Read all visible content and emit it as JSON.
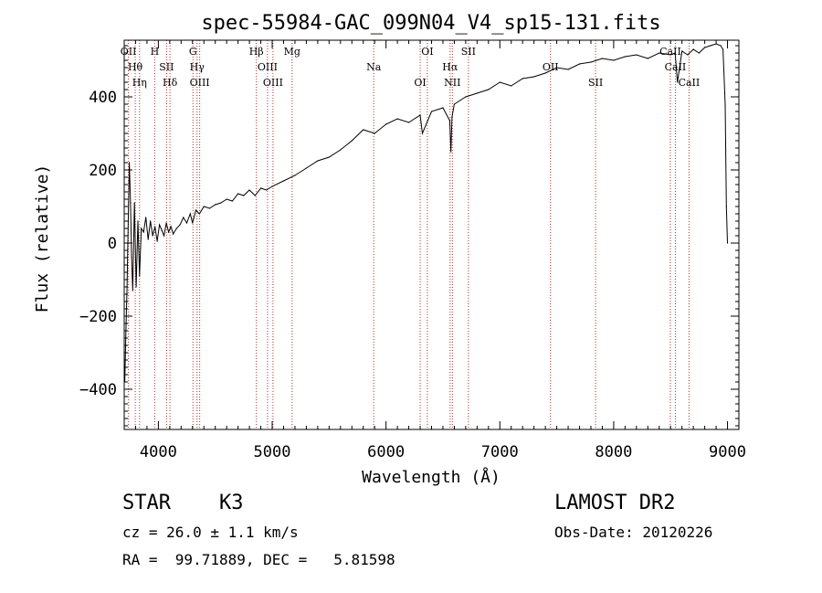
{
  "chart_data": {
    "type": "line",
    "title": "spec-55984-GAC_099N04_V4_sp15-131.fits",
    "xlabel": "Wavelength (Å)",
    "ylabel": "Flux (relative)",
    "xlim": [
      3700,
      9100
    ],
    "ylim": [
      -510,
      555
    ],
    "x_ticks": [
      4000,
      5000,
      6000,
      7000,
      8000,
      9000
    ],
    "x_tick_labels": [
      "4000",
      "5000",
      "6000",
      "7000",
      "8000",
      "9000"
    ],
    "y_ticks": [
      -400,
      -200,
      0,
      200,
      400
    ],
    "y_tick_labels": [
      "−400",
      "−200",
      "0",
      "200",
      "400"
    ],
    "grid": false,
    "series": [
      {
        "x": [
          3705,
          3715,
          3725,
          3735,
          3745,
          3755,
          3765,
          3775,
          3790,
          3805,
          3820,
          3835,
          3850,
          3870,
          3890,
          3910,
          3930,
          3950,
          3970,
          3990,
          4010,
          4030,
          4050,
          4070,
          4090,
          4110,
          4130,
          4160,
          4190,
          4220,
          4250,
          4280,
          4300,
          4330,
          4360,
          4400,
          4450,
          4500,
          4550,
          4600,
          4650,
          4700,
          4750,
          4800,
          4850,
          4900,
          4950,
          5000,
          5100,
          5200,
          5300,
          5400,
          5500,
          5600,
          5700,
          5800,
          5900,
          6000,
          6100,
          6200,
          6300,
          6320,
          6400,
          6500,
          6560,
          6570,
          6580,
          6600,
          6700,
          6800,
          6900,
          7000,
          7100,
          7200,
          7300,
          7400,
          7500,
          7600,
          7700,
          7800,
          7900,
          8000,
          8100,
          8200,
          8300,
          8400,
          8500,
          8540,
          8560,
          8600,
          8650,
          8700,
          8750,
          8800,
          8850,
          8900,
          8940,
          8960,
          8980,
          8990,
          9000
        ],
        "y": [
          -380,
          -240,
          -120,
          60,
          220,
          110,
          -40,
          -130,
          110,
          -120,
          60,
          -90,
          40,
          30,
          70,
          10,
          60,
          20,
          45,
          5,
          50,
          35,
          20,
          55,
          30,
          45,
          25,
          40,
          50,
          70,
          55,
          80,
          55,
          90,
          80,
          100,
          95,
          105,
          110,
          120,
          115,
          135,
          130,
          145,
          130,
          150,
          145,
          155,
          170,
          185,
          205,
          225,
          235,
          255,
          280,
          310,
          300,
          325,
          340,
          330,
          350,
          300,
          360,
          370,
          335,
          250,
          345,
          380,
          400,
          410,
          420,
          440,
          430,
          450,
          455,
          465,
          480,
          475,
          490,
          495,
          505,
          500,
          510,
          515,
          505,
          520,
          515,
          520,
          440,
          525,
          515,
          530,
          520,
          535,
          540,
          545,
          540,
          530,
          380,
          100,
          0
        ]
      }
    ],
    "lines": [
      {
        "x": 3737,
        "label": "OII"
      },
      {
        "x": 3797,
        "label": "Hθ"
      },
      {
        "x": 3835,
        "label": "Hη"
      },
      {
        "x": 3968,
        "label": "H"
      },
      {
        "x": 4072,
        "label": "SII"
      },
      {
        "x": 4102,
        "label": "Hδ"
      },
      {
        "x": 4304,
        "label": "G"
      },
      {
        "x": 4340,
        "label": "Hγ"
      },
      {
        "x": 4363,
        "label": "OIII"
      },
      {
        "x": 4861,
        "label": "Hβ"
      },
      {
        "x": 4959,
        "label": "OIII"
      },
      {
        "x": 5007,
        "label": "OIII"
      },
      {
        "x": 5175,
        "label": "Mg"
      },
      {
        "x": 5892,
        "label": "Na"
      },
      {
        "x": 6300,
        "label": "OI"
      },
      {
        "x": 6363,
        "label": "OI"
      },
      {
        "x": 6563,
        "label": "Hα"
      },
      {
        "x": 6583,
        "label": "NII"
      },
      {
        "x": 6724,
        "label": "SII"
      },
      {
        "x": 7445,
        "label": "OII"
      },
      {
        "x": 7841,
        "label": "SII"
      },
      {
        "x": 8498,
        "label": "CaII"
      },
      {
        "x": 8542,
        "label": "CaII"
      },
      {
        "x": 8662,
        "label": "CaII"
      }
    ]
  },
  "info": {
    "class": "STAR",
    "subclass": "K3",
    "survey": "LAMOST DR2",
    "redshift": "cz = 26.0 ± 1.1 km/s",
    "obs_date": "Obs-Date: 20120226",
    "coords": "RA =  99.71889, DEC =   5.81598"
  }
}
